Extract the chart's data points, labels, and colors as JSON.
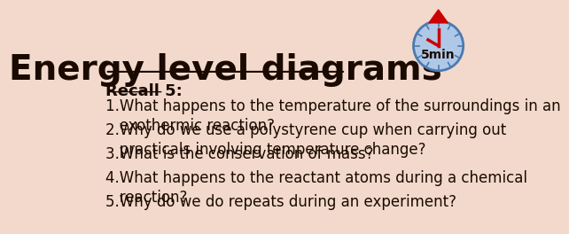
{
  "title": "Energy level diagrams",
  "background_color": "#f2d9cc",
  "title_color": "#1a0a00",
  "title_fontsize": 28,
  "recall_label": "Recall 5:",
  "recall_fontsize": 13,
  "questions": [
    "1.What happens to the temperature of the surroundings in an\n   exothermic reaction?",
    "2.Why do we use a polystyrene cup when carrying out\n   practicals involving temperature change?",
    "3.What is the conservation of mass?",
    "4.What happens to the reactant atoms during a chemical\n   reaction?",
    "5.Why do we do repeats during an experiment?"
  ],
  "question_fontsize": 12,
  "text_color": "#1a0a00",
  "timer_text": "5min",
  "timer_circle_color": "#b0c8e8",
  "timer_border_color": "#4a7ab0",
  "timer_hand_color": "#cc0000"
}
